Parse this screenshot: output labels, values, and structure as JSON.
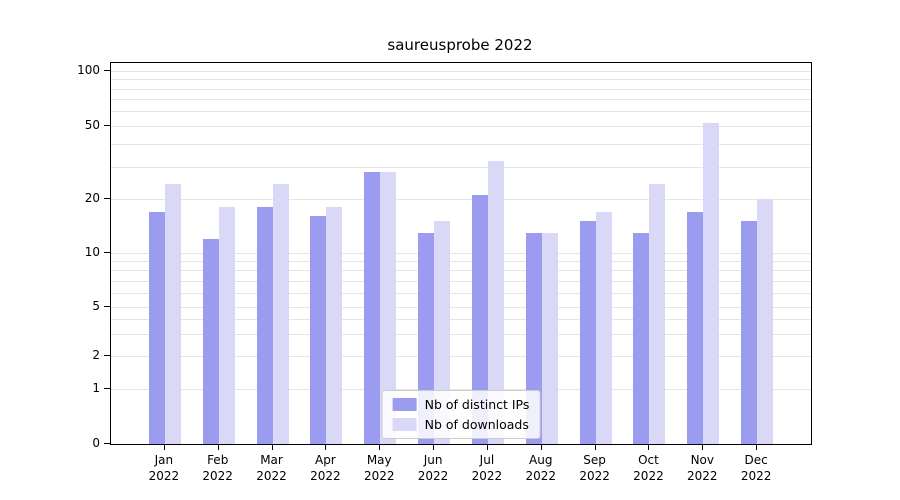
{
  "title": "saureusprobe 2022",
  "chart_data": {
    "type": "bar",
    "scale": "symlog",
    "title": "saureusprobe 2022",
    "categories": [
      "Jan",
      "Feb",
      "Mar",
      "Apr",
      "May",
      "Jun",
      "Jul",
      "Aug",
      "Sep",
      "Oct",
      "Nov",
      "Dec"
    ],
    "year_label": "2022",
    "series": [
      {
        "name": "Nb of distinct IPs",
        "color": "#9b9bef",
        "values": [
          17,
          12,
          18,
          16,
          28,
          13,
          21,
          13,
          15,
          13,
          17,
          15
        ]
      },
      {
        "name": "Nb of downloads",
        "color": "#d9d9f7",
        "values": [
          24,
          18,
          24,
          18,
          28,
          15,
          32,
          13,
          17,
          24,
          52,
          20
        ]
      }
    ],
    "yticks": [
      0,
      1,
      2,
      5,
      10,
      20,
      50,
      100
    ],
    "ylim": [
      0,
      100
    ],
    "grid": true,
    "legend_position": "lower center"
  }
}
